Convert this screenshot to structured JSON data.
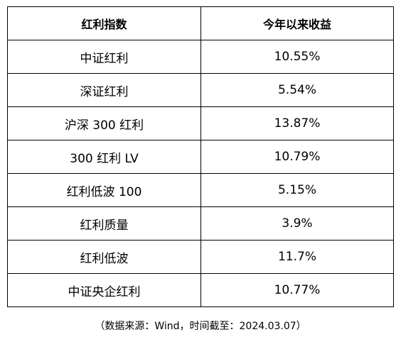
{
  "table": {
    "headers": [
      "红利指数",
      "今年以来收益"
    ],
    "rows": [
      [
        "中证红利",
        "10.55%"
      ],
      [
        "深证红利",
        "5.54%"
      ],
      [
        "沪深 300 红利",
        "13.87%"
      ],
      [
        "300 红利 LV",
        "10.79%"
      ],
      [
        "红利低波 100",
        "5.15%"
      ],
      [
        "红利质量",
        "3.9%"
      ],
      [
        "红利低波",
        "11.7%"
      ],
      [
        "中证央企红利",
        "10.77%"
      ]
    ]
  },
  "footnote": "（数据来源：Wind，时间截至：2024.03.07）"
}
